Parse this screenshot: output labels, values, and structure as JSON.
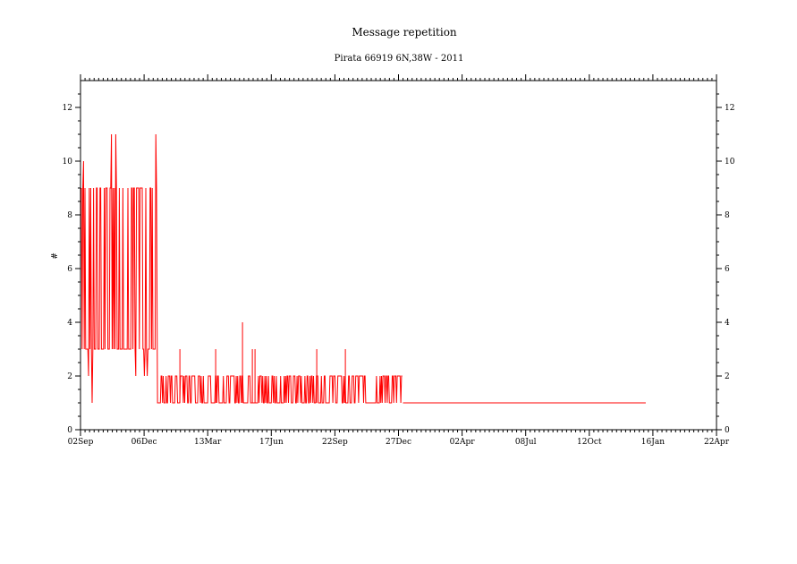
{
  "chart_data": {
    "type": "line",
    "title": "Message repetition",
    "subtitle": "Pirata 66919 6N,38W - 2011",
    "xlabel": "",
    "ylabel": "#",
    "ylim": [
      0,
      13
    ],
    "y_ticks": [
      0,
      2,
      4,
      6,
      8,
      10,
      12
    ],
    "x_ticks": [
      "02Sep",
      "06Dec",
      "13Mar",
      "17Jun",
      "22Sep",
      "27Dec",
      "02Apr",
      "08Jul",
      "12Oct",
      "16Jan",
      "22Apr"
    ],
    "grid": false,
    "color": "#ff0000",
    "segments": [
      {
        "phase": "first",
        "x_start": "02Sep",
        "x_end": "approx. 30Dec",
        "typical_min": 3,
        "typical_max": 9,
        "min": 1,
        "max": 11
      },
      {
        "phase": "second",
        "x_start": "approx. 30Dec",
        "x_end": "approx. 04Jan",
        "min": 1,
        "max": 4
      },
      {
        "phase": "third",
        "x_start": "approx. 04Jan",
        "x_end": "approx. 26Jan",
        "value": 1
      }
    ],
    "spikes": [
      {
        "x": "approx. 05Jan",
        "value": 3
      },
      {
        "x": "approx. 23Mar",
        "value": 3
      },
      {
        "x": "approx. 07Apr",
        "value": 4
      },
      {
        "x": "approx. 12Apr",
        "value": 3
      },
      {
        "x": "approx. 15Apr",
        "value": 3
      },
      {
        "x": "approx. 20Sep",
        "value": 3
      },
      {
        "x": "approx. 12Oct",
        "value": 3
      }
    ]
  }
}
